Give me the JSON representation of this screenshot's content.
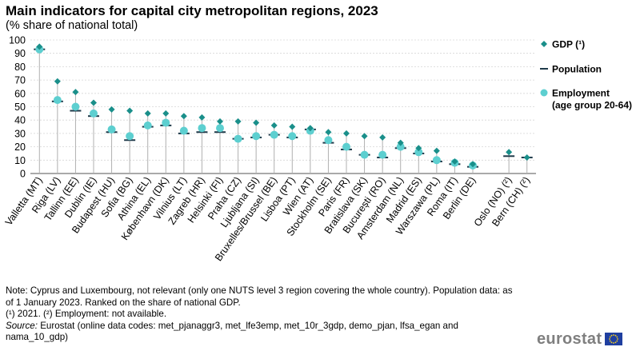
{
  "header": {
    "title": "Main indicators for capital city metropolitan regions, 2023",
    "subtitle": "(% share of national total)"
  },
  "notes": {
    "line1": "Note: Cyprus and Luxembourg, not relevant (only one NUTS level 3 region covering the whole country). Population data: as of 1 January 2023. Ranked on the share of national GDP.",
    "line2": "(¹) 2021. (²) Employment: not available.",
    "source_label": "Source:",
    "source_text": " Eurostat (online data codes: met_pjanaggr3, met_lfe3emp, met_10r_3gdp, demo_pjan, lfsa_egan and nama_10_gdp)"
  },
  "logo": {
    "text": "eurostat"
  },
  "colors": {
    "gdp": "#1a8f8a",
    "population": "#1f3a4a",
    "employment": "#5dcfd0",
    "stem": "#b0b0b0",
    "grid": "#d6d6d6"
  },
  "chart_data": {
    "type": "dot",
    "title": "Main indicators for capital city metropolitan regions, 2023",
    "ylabel": "% share of national total",
    "ylim": [
      0,
      100
    ],
    "yticks": [
      0,
      10,
      20,
      30,
      40,
      50,
      60,
      70,
      80,
      90,
      100
    ],
    "legend_position": "right",
    "categories": [
      "Valletta (MT)",
      "Riga (LV)",
      "Tallinn (EE)",
      "Dublin (IE)",
      "Budapest (HU)",
      "Sofia (BG)",
      "Athina (EL)",
      "København (DK)",
      "Vilnius (LT)",
      "Zagreb (HR)",
      "Helsinki (FI)",
      "Praha (CZ)",
      "Ljubljana (SI)",
      "Bruxelles/Brussel (BE)",
      "Lisboa (PT)",
      "Wien (AT)",
      "Stockholm (SE)",
      "Paris (FR)",
      "Bratislava (SK)",
      "București (RO)",
      "Amsterdam (NL)",
      "Madrid (ES)",
      "Warszawa (PL)",
      "Roma (IT)",
      "Berlin (DE)",
      "",
      "Oslo (NO) (²)",
      "Bern (CH) (²)"
    ],
    "series": [
      {
        "name": "GDP (¹)",
        "marker": "diamond",
        "values": [
          95,
          69,
          61,
          53,
          48,
          47,
          45,
          45,
          43,
          42,
          39,
          39,
          38,
          36,
          35,
          34,
          31,
          30,
          28,
          27,
          23,
          19,
          17,
          9,
          7,
          null,
          16,
          12
        ]
      },
      {
        "name": "Population",
        "marker": "dash",
        "values": [
          93,
          54,
          47,
          43,
          31,
          25,
          35,
          36,
          30,
          31,
          31,
          26,
          27,
          29,
          27,
          33,
          23,
          18,
          14,
          12,
          19,
          15,
          9,
          7,
          5,
          null,
          13,
          12
        ]
      },
      {
        "name": "Employment\n(age group 20-64)",
        "marker": "circle",
        "values": [
          93,
          55,
          50,
          45,
          33,
          28,
          36,
          38,
          32,
          34,
          34,
          26,
          28,
          29,
          28,
          32,
          25,
          20,
          14,
          14,
          20,
          16,
          10,
          8,
          6,
          null,
          null,
          null
        ]
      }
    ]
  }
}
